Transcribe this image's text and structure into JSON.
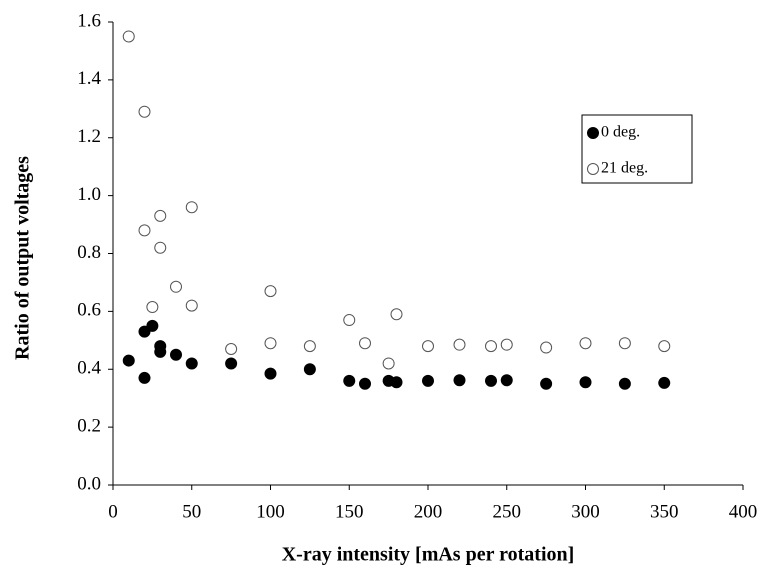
{
  "chart_data": {
    "type": "scatter",
    "x_label": "X-ray intensity [mAs per rotation]",
    "y_label": "Ratio of output voltages",
    "xlim": [
      0,
      400
    ],
    "xticks": [
      0,
      50,
      100,
      150,
      200,
      250,
      300,
      350,
      400
    ],
    "ylim": [
      0,
      1.6
    ],
    "yticks": [
      {
        "value": 0,
        "label": "0.0"
      },
      0.2,
      0.4,
      0.6,
      0.8,
      {
        "value": 1,
        "label": "1.0"
      },
      1.2,
      1.4,
      1.6
    ],
    "grid": false,
    "legend": "upper right",
    "series": [
      {
        "name": "0 deg.",
        "color": "#000000",
        "face_color": "#000000",
        "x": [
          10,
          20,
          20,
          25,
          30,
          30,
          40,
          50,
          75,
          100,
          125,
          150,
          160,
          175,
          180,
          200,
          220,
          240,
          250,
          275,
          300,
          325,
          350
        ],
        "values": [
          0.43,
          0.37,
          0.53,
          0.55,
          0.48,
          0.46,
          0.45,
          0.42,
          0.42,
          0.385,
          0.4,
          0.36,
          0.35,
          0.36,
          0.355,
          0.36,
          0.362,
          0.36,
          0.362,
          0.35,
          0.355,
          0.35,
          0.353
        ]
      },
      {
        "name": "21 deg.",
        "color": "#555555",
        "face_color": "#ffffff",
        "x": [
          10,
          20,
          20,
          25,
          30,
          30,
          40,
          50,
          50,
          75,
          100,
          100,
          125,
          150,
          160,
          175,
          180,
          200,
          220,
          240,
          250,
          275,
          300,
          325,
          350
        ],
        "values": [
          1.55,
          1.29,
          0.88,
          0.615,
          0.93,
          0.82,
          0.685,
          0.96,
          0.62,
          0.47,
          0.67,
          0.49,
          0.48,
          0.57,
          0.49,
          0.42,
          0.59,
          0.48,
          0.485,
          0.48,
          0.485,
          0.475,
          0.49,
          0.49,
          0.48
        ]
      }
    ]
  }
}
